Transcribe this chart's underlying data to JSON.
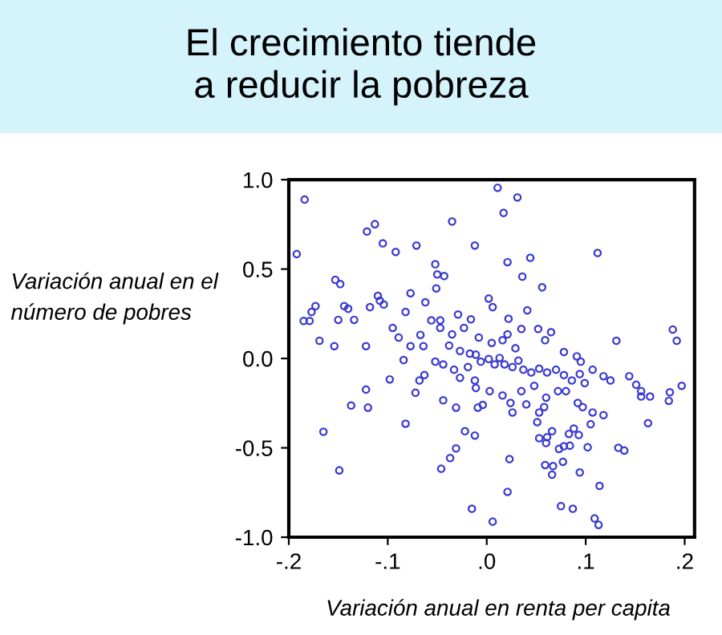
{
  "chart_data": {
    "type": "scatter",
    "title": "El crecimiento tiende\na reducir la pobreza",
    "xlabel": "Variación anual en renta per capita",
    "ylabel": "Variación anual en el\nnúmero de pobres",
    "marker": "circle",
    "grid": false,
    "xlim": [
      -0.2,
      0.21
    ],
    "ylim": [
      -1.0,
      1.0
    ],
    "xticks": [
      {
        "value": -0.2,
        "label": "-.2"
      },
      {
        "value": -0.1,
        "label": "-.1"
      },
      {
        "value": 0,
        "label": ".0"
      },
      {
        "value": 0.1,
        "label": ".1"
      },
      {
        "value": 0.2,
        "label": ".2"
      }
    ],
    "yticks": [
      {
        "value": -1.0,
        "label": "-1.0"
      },
      {
        "value": -0.5,
        "label": "-0.5"
      },
      {
        "value": 0,
        "label": "0.0"
      },
      {
        "value": 0.5,
        "label": "0.5"
      },
      {
        "value": 1.0,
        "label": "1.0"
      }
    ],
    "series": [
      {
        "color": "#3a3ad0",
        "x": [
          -0.184,
          -0.192,
          -0.121,
          -0.113,
          -0.105,
          -0.092,
          -0.071,
          -0.035,
          -0.012,
          0.011,
          0.031,
          0.017,
          0.021,
          0.044,
          0.036,
          0.056,
          0.112,
          -0.052,
          -0.05,
          -0.043,
          -0.051,
          -0.153,
          -0.148,
          -0.077,
          -0.062,
          -0.11,
          -0.108,
          -0.104,
          -0.118,
          -0.144,
          -0.14,
          -0.173,
          -0.177,
          -0.185,
          -0.179,
          -0.15,
          -0.134,
          -0.082,
          -0.029,
          -0.016,
          0.002,
          0.006,
          0.022,
          0.041,
          -0.095,
          -0.169,
          -0.154,
          -0.122,
          -0.089,
          -0.067,
          -0.056,
          -0.047,
          -0.047,
          -0.035,
          -0.023,
          -0.008,
          0.021,
          0.035,
          0.052,
          0.065,
          0.131,
          0.188,
          0.192,
          -0.077,
          -0.084,
          -0.064,
          -0.038,
          -0.027,
          -0.017,
          -0.011,
          -0.006,
          0.002,
          0.008,
          0.013,
          0.018,
          0.026,
          0.032,
          0.037,
          0.045,
          0.053,
          0.061,
          0.07,
          0.078,
          0.086,
          0.094,
          0.099,
          -0.019,
          -0.033,
          -0.044,
          -0.052,
          0.005,
          0.016,
          0.029,
          0.059,
          0.078,
          0.091,
          0.095,
          -0.098,
          -0.122,
          -0.12,
          -0.072,
          -0.068,
          -0.082,
          -0.044,
          -0.031,
          -0.009,
          -0.004,
          -0.012,
          -0.011,
          0.003,
          0.016,
          0.024,
          0.026,
          0.04,
          0.051,
          0.053,
          0.058,
          0.06,
          0.072,
          0.08,
          0.092,
          0.097,
          0.107,
          0.118,
          0.118,
          0.125,
          0.144,
          0.151,
          0.156,
          0.165,
          0.156,
          0.185,
          0.184,
          0.197,
          0.163,
          0.105,
          0.102,
          0.133,
          0.139,
          -0.165,
          -0.149,
          -0.022,
          -0.012,
          -0.031,
          -0.037,
          -0.046,
          0.023,
          0.053,
          0.061,
          0.066,
          0.06,
          0.073,
          0.078,
          0.083,
          0.088,
          0.093,
          0.084,
          0.059,
          0.067,
          0.066,
          0.077,
          0.094,
          0.114,
          0.021,
          -0.015,
          0.006,
          0.075,
          0.087,
          0.109,
          0.113,
          -0.137,
          -0.063,
          -0.027,
          0.048,
          0.035,
          0.107
        ],
        "values": [
          0.889,
          0.584,
          0.71,
          0.751,
          0.644,
          0.596,
          0.632,
          0.766,
          0.632,
          0.955,
          0.901,
          0.814,
          0.539,
          0.563,
          0.458,
          0.398,
          0.59,
          0.527,
          0.47,
          0.461,
          0.392,
          0.44,
          0.416,
          0.365,
          0.314,
          0.35,
          0.323,
          0.302,
          0.287,
          0.293,
          0.278,
          0.293,
          0.26,
          0.21,
          0.21,
          0.216,
          0.216,
          0.26,
          0.246,
          0.219,
          0.335,
          0.287,
          0.222,
          0.269,
          0.171,
          0.099,
          0.069,
          0.069,
          0.117,
          0.132,
          0.213,
          0.213,
          0.171,
          0.135,
          0.171,
          0.117,
          0.135,
          0.165,
          0.165,
          0.147,
          0.099,
          0.162,
          0.099,
          0.069,
          -0.009,
          0.069,
          0.072,
          0.042,
          0.027,
          0.021,
          -0.018,
          -0.003,
          -0.033,
          0.003,
          -0.033,
          -0.048,
          -0.012,
          -0.063,
          -0.078,
          -0.057,
          -0.078,
          -0.063,
          -0.093,
          -0.123,
          -0.087,
          -0.138,
          -0.048,
          -0.063,
          -0.033,
          -0.018,
          0.087,
          0.102,
          0.057,
          0.102,
          0.036,
          0.012,
          -0.018,
          -0.117,
          -0.174,
          -0.275,
          -0.192,
          -0.123,
          -0.365,
          -0.234,
          -0.275,
          -0.275,
          -0.26,
          -0.123,
          -0.165,
          -0.183,
          -0.207,
          -0.249,
          -0.302,
          -0.257,
          -0.356,
          -0.302,
          -0.272,
          -0.219,
          -0.183,
          -0.183,
          -0.249,
          -0.272,
          -0.302,
          -0.317,
          -0.099,
          -0.123,
          -0.099,
          -0.147,
          -0.213,
          -0.213,
          -0.183,
          -0.189,
          -0.237,
          -0.153,
          -0.362,
          -0.368,
          -0.497,
          -0.5,
          -0.515,
          -0.41,
          -0.626,
          -0.407,
          -0.431,
          -0.503,
          -0.557,
          -0.617,
          -0.563,
          -0.446,
          -0.44,
          -0.407,
          -0.473,
          -0.506,
          -0.491,
          -0.422,
          -0.392,
          -0.428,
          -0.488,
          -0.596,
          -0.602,
          -0.65,
          -0.578,
          -0.638,
          -0.713,
          -0.746,
          -0.841,
          -0.913,
          -0.826,
          -0.841,
          -0.895,
          -0.931,
          -0.263,
          -0.093,
          -0.108,
          -0.153,
          -0.183,
          -0.063
        ]
      }
    ]
  }
}
